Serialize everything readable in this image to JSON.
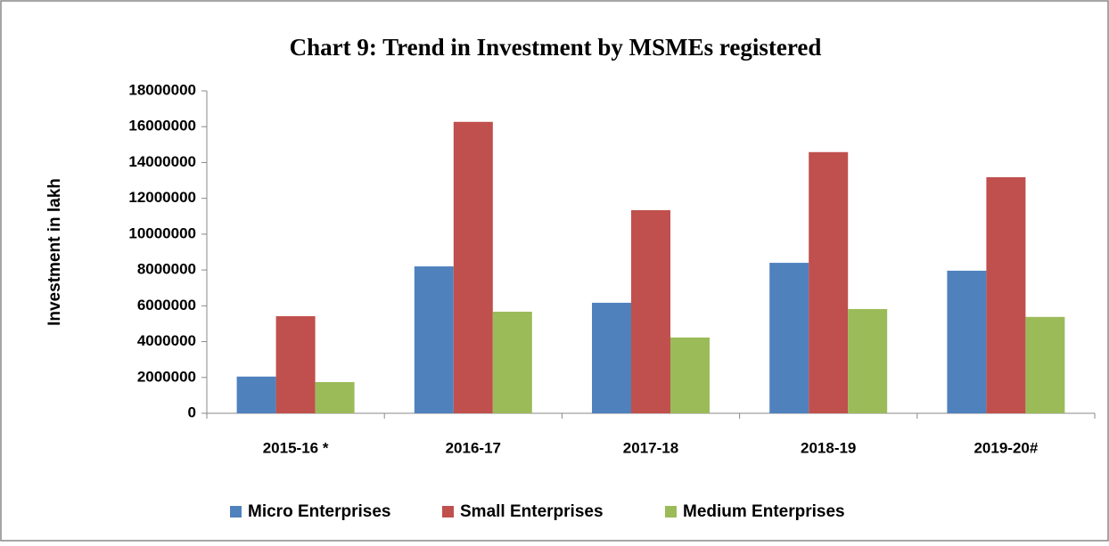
{
  "chart_data": {
    "type": "bar",
    "title": "Chart 9: Trend in Investment by MSMEs registered",
    "y_label": "Investment in lakh",
    "categories": [
      "2015-16 *",
      "2016-17",
      "2017-18",
      "2018-19",
      "2019-20#"
    ],
    "series": [
      {
        "name": "Micro Enterprises",
        "color": "#4f81bd",
        "values": [
          2050000,
          8200000,
          6170000,
          8400000,
          7960000
        ]
      },
      {
        "name": "Small Enterprises",
        "color": "#c0504d",
        "values": [
          5420000,
          16270000,
          11340000,
          14580000,
          13180000
        ]
      },
      {
        "name": "Medium Enterprises",
        "color": "#9bbb59",
        "values": [
          1740000,
          5670000,
          4230000,
          5820000,
          5380000
        ]
      }
    ],
    "ylim": [
      0,
      18000000
    ],
    "yticks": [
      0,
      2000000,
      4000000,
      6000000,
      8000000,
      10000000,
      12000000,
      14000000,
      16000000,
      18000000
    ],
    "legend": "bottom"
  }
}
